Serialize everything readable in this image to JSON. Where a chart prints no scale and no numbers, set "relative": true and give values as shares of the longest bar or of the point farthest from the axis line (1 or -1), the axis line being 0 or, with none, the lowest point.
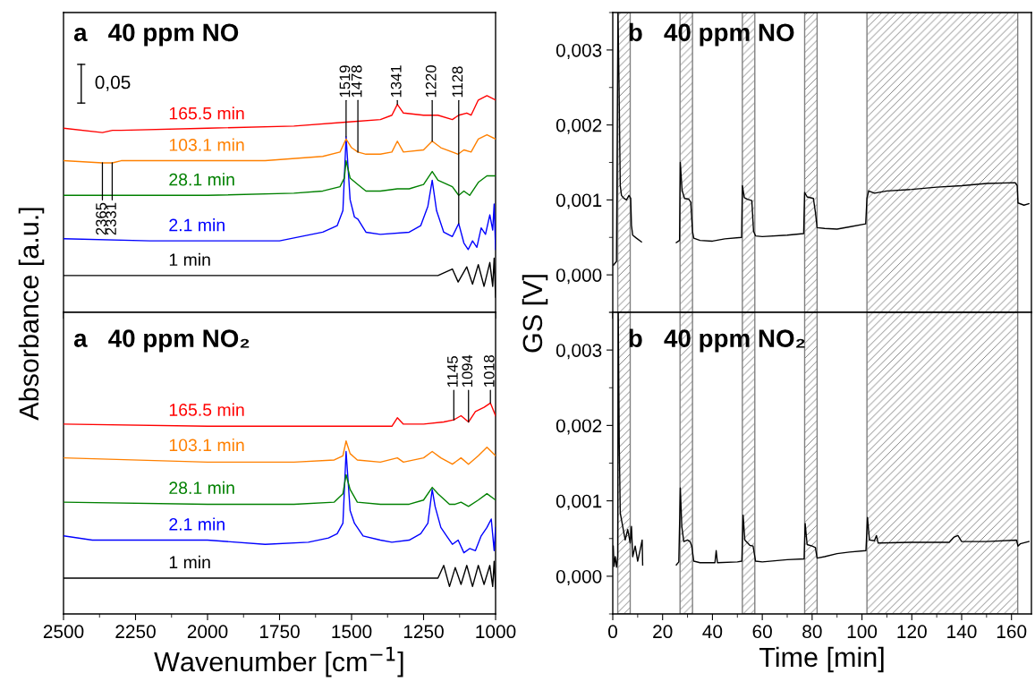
{
  "chart_data": [
    {
      "type": "line",
      "title": "a   40 ppm NO",
      "ylabel": "Absorbance [a.u.]",
      "relative": true,
      "xlim": [
        2500,
        1000
      ],
      "xticks": [
        2500,
        2250,
        2000,
        1750,
        1500,
        1250,
        1000
      ],
      "tick_labels": false,
      "series": [
        {
          "name": "1 min",
          "color": "#000000",
          "x": [
            2500,
            2000,
            1500,
            1200,
            1150,
            1130,
            1100,
            1080,
            1060,
            1040,
            1020,
            1010,
            1005,
            1000
          ],
          "values": [
            0.17,
            0.17,
            0.17,
            0.17,
            0.2,
            0.14,
            0.21,
            0.13,
            0.22,
            0.12,
            0.23,
            0.12,
            0.25,
            0.07
          ]
        },
        {
          "name": "2.1 min",
          "color": "#0000ff",
          "x": [
            2500,
            2200,
            1750,
            1600,
            1550,
            1530,
            1519,
            1505,
            1490,
            1478,
            1450,
            1400,
            1300,
            1260,
            1235,
            1220,
            1205,
            1180,
            1150,
            1128,
            1110,
            1095,
            1080,
            1065,
            1050,
            1035,
            1020,
            1010,
            1005,
            1000
          ],
          "values": [
            0.34,
            0.33,
            0.33,
            0.37,
            0.4,
            0.47,
            0.81,
            0.52,
            0.44,
            0.43,
            0.37,
            0.36,
            0.37,
            0.4,
            0.49,
            0.61,
            0.47,
            0.37,
            0.35,
            0.41,
            0.32,
            0.29,
            0.33,
            0.3,
            0.39,
            0.36,
            0.45,
            0.38,
            0.5,
            0.29
          ]
        },
        {
          "name": "28.1 min",
          "color": "#008000",
          "x": [
            2500,
            2000,
            1700,
            1600,
            1540,
            1525,
            1519,
            1505,
            1478,
            1450,
            1400,
            1341,
            1300,
            1250,
            1220,
            1200,
            1150,
            1128,
            1110,
            1090,
            1060,
            1030,
            1000
          ],
          "values": [
            0.54,
            0.54,
            0.55,
            0.56,
            0.58,
            0.62,
            0.7,
            0.62,
            0.59,
            0.56,
            0.56,
            0.57,
            0.57,
            0.59,
            0.65,
            0.61,
            0.58,
            0.54,
            0.56,
            0.54,
            0.6,
            0.63,
            0.63
          ]
        },
        {
          "name": "103.1 min",
          "color": "#ff8000",
          "x": [
            2500,
            2365,
            2330,
            2300,
            2000,
            1800,
            1600,
            1540,
            1519,
            1500,
            1478,
            1450,
            1400,
            1360,
            1341,
            1320,
            1250,
            1220,
            1190,
            1130,
            1110,
            1085,
            1060,
            1030,
            1000
          ],
          "values": [
            0.7,
            0.69,
            0.69,
            0.7,
            0.7,
            0.7,
            0.72,
            0.74,
            0.8,
            0.76,
            0.74,
            0.73,
            0.73,
            0.74,
            0.79,
            0.74,
            0.75,
            0.79,
            0.76,
            0.73,
            0.75,
            0.74,
            0.8,
            0.82,
            0.8
          ]
        },
        {
          "name": "165.5 min",
          "color": "#ff0000",
          "x": [
            2500,
            2365,
            2330,
            2300,
            2000,
            1700,
            1500,
            1400,
            1360,
            1341,
            1320,
            1250,
            1200,
            1150,
            1128,
            1100,
            1085,
            1060,
            1030,
            1000
          ],
          "values": [
            0.85,
            0.83,
            0.84,
            0.84,
            0.85,
            0.86,
            0.88,
            0.89,
            0.91,
            0.96,
            0.92,
            0.91,
            0.91,
            0.89,
            0.91,
            0.92,
            0.91,
            0.98,
            1.0,
            0.98
          ]
        }
      ],
      "annotations": [
        {
          "text": "1519",
          "x": 1519,
          "y": 0.81
        },
        {
          "text": "1478",
          "x": 1478,
          "y": 0.74
        },
        {
          "text": "1341",
          "x": 1341,
          "y": 0.96
        },
        {
          "text": "1220",
          "x": 1220,
          "y": 0.79
        },
        {
          "text": "1128",
          "x": 1128,
          "y": 0.41
        },
        {
          "text": "2365",
          "x": 2365,
          "y": 0.69
        },
        {
          "text": "2331",
          "x": 2331,
          "y": 0.69
        },
        "0,05"
      ]
    },
    {
      "type": "line",
      "title": "b   40 ppm NO",
      "ylabel": "GS [V]",
      "xlim": [
        0,
        168
      ],
      "xticks": [
        0,
        20,
        40,
        60,
        80,
        100,
        120,
        140,
        160
      ],
      "ylim": [
        -0.0005,
        0.0035
      ],
      "yticks": [
        {
          "value": 0,
          "label": "0,000"
        },
        {
          "value": 0.001,
          "label": "0,001"
        },
        {
          "value": 0.002,
          "label": "0,002"
        },
        {
          "value": 0.003,
          "label": "0,003"
        }
      ],
      "tick_labels": "y",
      "bands": [
        {
          "axis": "x",
          "from": 2,
          "to": 7,
          "color": "#808080"
        },
        {
          "axis": "x",
          "from": 27,
          "to": 32,
          "color": "#808080"
        },
        {
          "axis": "x",
          "from": 52,
          "to": 57,
          "color": "#808080"
        },
        {
          "axis": "x",
          "from": 77,
          "to": 82,
          "color": "#808080"
        },
        {
          "axis": "x",
          "from": 102,
          "to": 162.5,
          "color": "#808080"
        }
      ],
      "series": [
        {
          "color": "#000000",
          "x": [
            0.3,
            1.5,
            2.1,
            2.5,
            3,
            3.5,
            4.5,
            5.5,
            6.5,
            7.2,
            7.5,
            8,
            9.5,
            11.5,
            19,
            25.5,
            26.8,
            27.1,
            27.8,
            28.8,
            30.5,
            31.3,
            32,
            32.5,
            35,
            40,
            45,
            51.7,
            52,
            52.8,
            54,
            55.8,
            56.5,
            57.3,
            60,
            70,
            76.6,
            77,
            78,
            80.5,
            81.3,
            82,
            85,
            90,
            95,
            101.5,
            102,
            102.7,
            105,
            110,
            120,
            130,
            140,
            150,
            161.5,
            162.3,
            162.6,
            165,
            167
          ],
          "values": [
            0.00013,
            0.00018,
            0.0035,
            0.00257,
            0.00119,
            0.00106,
            0.00102,
            0.001,
            0.00106,
            0.00102,
            0.00066,
            0.00053,
            0.00049,
            0.00044,
            null,
            0.00043,
            0.00046,
            0.0015,
            0.00113,
            0.00102,
            0.00101,
            0.00097,
            0.00058,
            0.00049,
            0.00046,
            0.00045,
            0.00048,
            0.0005,
            0.00119,
            0.00103,
            0.00101,
            0.00099,
            0.00058,
            0.00052,
            0.00051,
            0.00053,
            0.00055,
            0.0011,
            0.00104,
            0.00102,
            0.00084,
            0.00063,
            0.00062,
            0.00061,
            0.00064,
            0.00068,
            0.00102,
            0.00112,
            0.00109,
            0.00112,
            0.00114,
            0.00117,
            0.00119,
            0.00122,
            0.00123,
            0.00119,
            0.00096,
            0.00093,
            0.00095
          ]
        }
      ]
    },
    {
      "type": "line",
      "title": "a   40 ppm NO₂",
      "xlabel": "Wavenumber [cm$^{−1}$]",
      "relative": true,
      "xlim": [
        2500,
        1000
      ],
      "xticks": [
        2500,
        2250,
        2000,
        1750,
        1500,
        1250,
        1000
      ],
      "tick_labels": "x",
      "series": [
        {
          "name": "1 min",
          "color": "#000000",
          "x": [
            2500,
            2000,
            1500,
            1200,
            1180,
            1160,
            1140,
            1120,
            1100,
            1080,
            1060,
            1040,
            1020,
            1010,
            1005,
            1000
          ],
          "values": [
            0.17,
            0.17,
            0.17,
            0.17,
            0.23,
            0.13,
            0.22,
            0.14,
            0.23,
            0.13,
            0.23,
            0.14,
            0.23,
            0.13,
            0.25,
            0.12
          ]
        },
        {
          "name": "2.1 min",
          "color": "#0000ff",
          "x": [
            2500,
            2400,
            2300,
            2000,
            1800,
            1650,
            1580,
            1550,
            1530,
            1519,
            1505,
            1490,
            1460,
            1400,
            1360,
            1300,
            1260,
            1235,
            1220,
            1210,
            1190,
            1170,
            1150,
            1130,
            1110,
            1090,
            1070,
            1050,
            1030,
            1015,
            1005,
            1000
          ],
          "values": [
            0.37,
            0.35,
            0.35,
            0.35,
            0.33,
            0.34,
            0.36,
            0.38,
            0.43,
            0.77,
            0.49,
            0.43,
            0.37,
            0.35,
            0.34,
            0.35,
            0.38,
            0.43,
            0.59,
            0.51,
            0.41,
            0.37,
            0.33,
            0.35,
            0.29,
            0.31,
            0.3,
            0.37,
            0.41,
            0.45,
            0.3,
            0.41
          ]
        },
        {
          "name": "28.1 min",
          "color": "#008000",
          "x": [
            2500,
            2000,
            1700,
            1560,
            1530,
            1519,
            1505,
            1480,
            1400,
            1341,
            1300,
            1250,
            1220,
            1200,
            1160,
            1140,
            1120,
            1094,
            1060,
            1030,
            1000
          ],
          "values": [
            0.53,
            0.52,
            0.52,
            0.53,
            0.57,
            0.66,
            0.59,
            0.53,
            0.52,
            0.52,
            0.52,
            0.54,
            0.6,
            0.57,
            0.52,
            0.52,
            0.53,
            0.51,
            0.54,
            0.57,
            0.54
          ]
        },
        {
          "name": "103.1 min",
          "color": "#ff8000",
          "x": [
            2500,
            2000,
            1700,
            1560,
            1530,
            1519,
            1505,
            1480,
            1400,
            1341,
            1320,
            1250,
            1220,
            1190,
            1150,
            1120,
            1094,
            1060,
            1030,
            1000
          ],
          "values": [
            0.74,
            0.72,
            0.72,
            0.73,
            0.75,
            0.82,
            0.76,
            0.73,
            0.72,
            0.74,
            0.72,
            0.74,
            0.77,
            0.74,
            0.71,
            0.74,
            0.71,
            0.75,
            0.79,
            0.75
          ]
        },
        {
          "name": "165.5 min",
          "color": "#ff0000",
          "x": [
            2500,
            2000,
            1700,
            1500,
            1360,
            1341,
            1320,
            1250,
            1180,
            1145,
            1120,
            1094,
            1070,
            1040,
            1018,
            1000
          ],
          "values": [
            0.9,
            0.89,
            0.89,
            0.89,
            0.89,
            0.93,
            0.9,
            0.9,
            0.91,
            0.92,
            0.94,
            0.91,
            0.96,
            0.98,
            1.0,
            0.94
          ]
        }
      ],
      "annotations": [
        {
          "text": "1145",
          "x": 1145,
          "y": 0.92
        },
        {
          "text": "1094",
          "x": 1094,
          "y": 0.91
        },
        {
          "text": "1018",
          "x": 1018,
          "y": 1.0
        }
      ]
    },
    {
      "type": "line",
      "title": "b   40 ppm NO₂",
      "xlabel": "Time [min]",
      "xlim": [
        0,
        168
      ],
      "xticks": [
        0,
        20,
        40,
        60,
        80,
        100,
        120,
        140,
        160
      ],
      "ylim": [
        -0.0005,
        0.0035
      ],
      "yticks": [
        {
          "value": 0,
          "label": "0,000"
        },
        {
          "value": 0.001,
          "label": "0,001"
        },
        {
          "value": 0.002,
          "label": "0,002"
        },
        {
          "value": 0.003,
          "label": "0,003"
        }
      ],
      "bands": [
        {
          "axis": "x",
          "from": 2,
          "to": 7,
          "color": "#808080"
        },
        {
          "axis": "x",
          "from": 27,
          "to": 32,
          "color": "#808080"
        },
        {
          "axis": "x",
          "from": 52,
          "to": 57,
          "color": "#808080"
        },
        {
          "axis": "x",
          "from": 77,
          "to": 82,
          "color": "#808080"
        },
        {
          "axis": "x",
          "from": 102,
          "to": 162.5,
          "color": "#808080"
        }
      ],
      "series": [
        {
          "color": "#000000",
          "x": [
            0.2,
            0.5,
            1,
            1.5,
            2,
            2.2,
            2.6,
            3,
            4,
            5,
            6,
            7,
            7.5,
            8,
            9,
            10,
            11,
            11.8,
            12,
            19,
            25.5,
            26.5,
            27.1,
            27.7,
            28.5,
            30,
            31,
            31.7,
            32.5,
            35,
            41,
            41.5,
            42,
            50,
            51.8,
            52.3,
            53,
            55,
            56.3,
            57.3,
            60,
            70,
            76.8,
            77.2,
            78,
            80,
            81.3,
            82,
            85,
            90,
            95,
            101.6,
            102.2,
            103,
            105,
            105.8,
            106.5,
            120,
            135,
            137,
            138.5,
            140,
            150,
            162,
            162.6,
            163.5,
            167
          ],
          "values": [
            0.0004,
            0.00013,
            0.00026,
            0.00012,
            0.00026,
            0.0035,
            0.00176,
            0.00084,
            0.00066,
            0.00048,
            0.00062,
            0.00044,
            0.00066,
            0.00026,
            0.0004,
            0.0002,
            0.00035,
            0.00048,
            0.00015,
            null,
            0.00015,
            0.00019,
            0.00117,
            0.00066,
            0.00046,
            0.00048,
            0.00046,
            0.0004,
            0.0002,
            0.00018,
            0.00018,
            0.00034,
            0.00018,
            0.00019,
            0.0002,
            0.00081,
            0.00048,
            0.00041,
            0.0004,
            0.0002,
            0.00019,
            0.00022,
            0.00023,
            0.0007,
            0.00042,
            0.0004,
            0.00038,
            0.00024,
            0.00026,
            0.0003,
            0.00032,
            0.00034,
            0.00078,
            0.00048,
            0.00047,
            0.00054,
            0.00044,
            0.00045,
            0.00045,
            0.00052,
            0.00054,
            0.00046,
            0.00046,
            0.00048,
            0.0004,
            0.00043,
            0.00046
          ]
        }
      ]
    }
  ]
}
